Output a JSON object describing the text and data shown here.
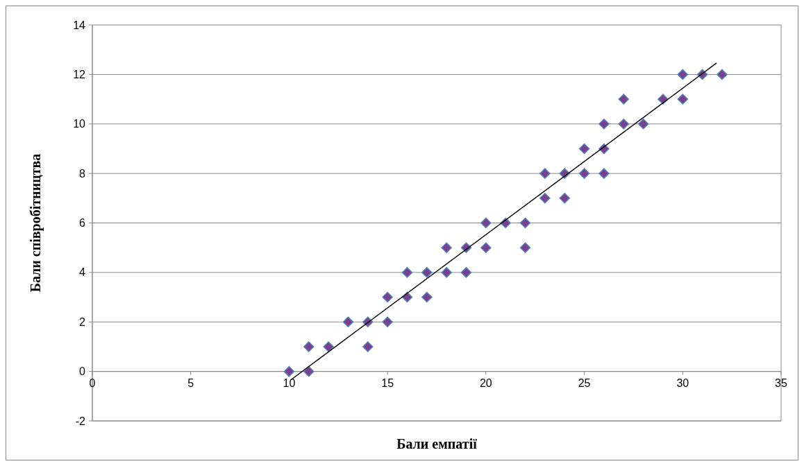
{
  "chart_data": {
    "type": "scatter",
    "xlabel": "Бали емпатії",
    "ylabel": "Бали співробітництва",
    "xlim": [
      0,
      35
    ],
    "ylim": [
      -2,
      14
    ],
    "xticks": [
      0,
      5,
      10,
      15,
      20,
      25,
      30,
      35
    ],
    "yticks": [
      -2,
      0,
      2,
      4,
      6,
      8,
      10,
      12,
      14
    ],
    "grid": "y",
    "marker": "diamond",
    "series": [
      {
        "color": "#7b3f8f",
        "x": [
          10,
          11,
          11,
          12,
          13,
          14,
          14,
          15,
          15,
          16,
          16,
          17,
          17,
          18,
          18,
          19,
          19,
          20,
          20,
          21,
          22,
          22,
          23,
          23,
          24,
          24,
          25,
          25,
          26,
          26,
          26,
          27,
          27,
          28,
          29,
          30,
          30,
          31,
          32
        ],
        "values": [
          0,
          1,
          0,
          1,
          2,
          2,
          1,
          3,
          2,
          4,
          3,
          4,
          3,
          5,
          4,
          5,
          4,
          6,
          5,
          6,
          6,
          5,
          8,
          7,
          8,
          7,
          9,
          8,
          10,
          9,
          8,
          11,
          10,
          10,
          11,
          12,
          11,
          12,
          12
        ]
      },
      {
        "type": "line",
        "color": "#000000",
        "marker": "none",
        "x": [
          10.09,
          31.72
        ],
        "values": [
          -0.34,
          12.46
        ]
      }
    ]
  }
}
